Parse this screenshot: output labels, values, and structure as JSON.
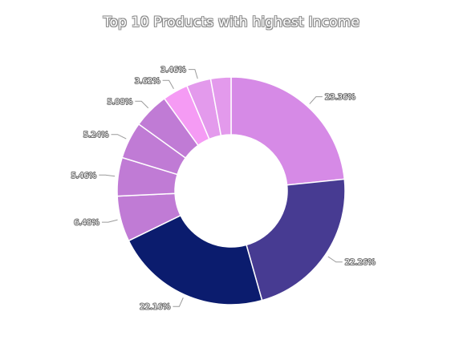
{
  "chart_data": {
    "type": "pie",
    "subtype": "donut",
    "title": "Top 10 Products with highest Income",
    "legend": "none",
    "slices": [
      {
        "label": "23.36%",
        "value": 23.36,
        "color": "#D68AE6"
      },
      {
        "label": "22.26%",
        "value": 22.26,
        "color": "#473B92"
      },
      {
        "label": "22.16%",
        "value": 22.16,
        "color": "#0B1C6E"
      },
      {
        "label": "6.48%",
        "value": 6.48,
        "color": "#C07BD5"
      },
      {
        "label": "5.46%",
        "value": 5.46,
        "color": "#C07BD5"
      },
      {
        "label": "5.24%",
        "value": 5.24,
        "color": "#C07BD5"
      },
      {
        "label": "5.08%",
        "value": 5.08,
        "color": "#C07BD5"
      },
      {
        "label": "3.62%",
        "value": 3.62,
        "color": "#F59BF4"
      },
      {
        "label": "3.46%",
        "value": 3.46,
        "color": "#E39AEC"
      },
      {
        "label": "",
        "value": 2.88,
        "color": "#E39AEC"
      }
    ]
  }
}
